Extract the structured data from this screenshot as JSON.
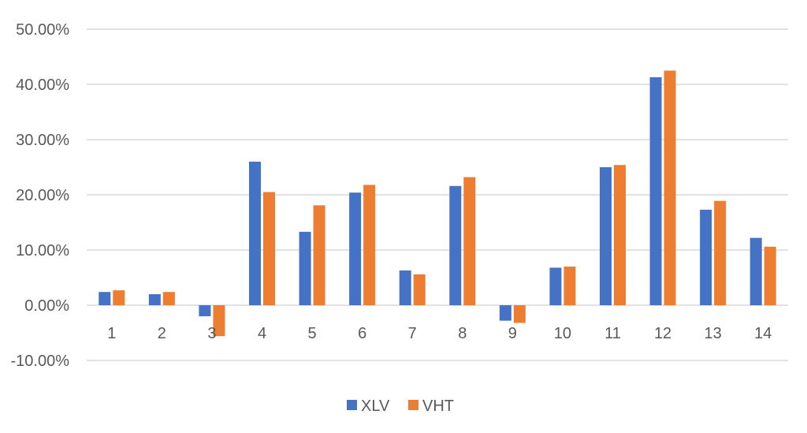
{
  "chart_data": {
    "type": "bar",
    "title": "",
    "xlabel": "",
    "ylabel": "",
    "categories": [
      "1",
      "2",
      "3",
      "4",
      "5",
      "6",
      "7",
      "8",
      "9",
      "10",
      "11",
      "12",
      "13",
      "14"
    ],
    "series": [
      {
        "name": "XLV",
        "color": "#4472C4",
        "values": [
          2.4,
          2.0,
          -2.0,
          26.0,
          13.3,
          20.4,
          6.3,
          21.6,
          -2.8,
          6.8,
          25.0,
          41.3,
          17.3,
          12.2
        ]
      },
      {
        "name": "VHT",
        "color": "#ED7D31",
        "values": [
          2.7,
          2.4,
          -5.6,
          20.5,
          18.1,
          21.8,
          5.6,
          23.2,
          -3.2,
          7.0,
          25.4,
          42.5,
          18.9,
          10.6
        ]
      }
    ],
    "ylim": [
      -10,
      50
    ],
    "y_ticks": [
      -10,
      0,
      10,
      20,
      30,
      40,
      50
    ],
    "y_tick_labels": [
      "-10.00%",
      "0.00%",
      "10.00%",
      "20.00%",
      "30.00%",
      "40.00%",
      "50.00%"
    ],
    "grid": true,
    "legend_position": "bottom"
  }
}
